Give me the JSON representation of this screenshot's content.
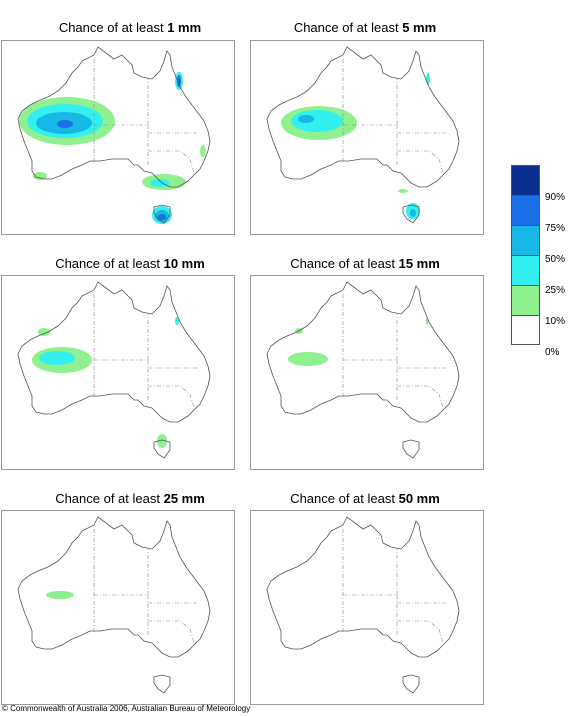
{
  "panels": [
    {
      "prefix": "Chance of at least ",
      "amount": "1 mm"
    },
    {
      "prefix": "Chance of at least ",
      "amount": "5 mm"
    },
    {
      "prefix": "Chance of at least ",
      "amount": "10 mm"
    },
    {
      "prefix": "Chance of at least ",
      "amount": "15 mm"
    },
    {
      "prefix": "Chance of at least ",
      "amount": "25 mm"
    },
    {
      "prefix": "Chance of at least ",
      "amount": "50 mm"
    }
  ],
  "legend": {
    "labels": [
      "90%",
      "75%",
      "50%",
      "25%",
      "10%",
      "0%"
    ],
    "colors": [
      "#0b2f8f",
      "#1a6fe8",
      "#17b8e6",
      "#33f0f0",
      "#8ef08e",
      "#ffffff"
    ]
  },
  "footer": "© Commonwealth of Australia 2006, Australian Bureau of Meteorology"
}
